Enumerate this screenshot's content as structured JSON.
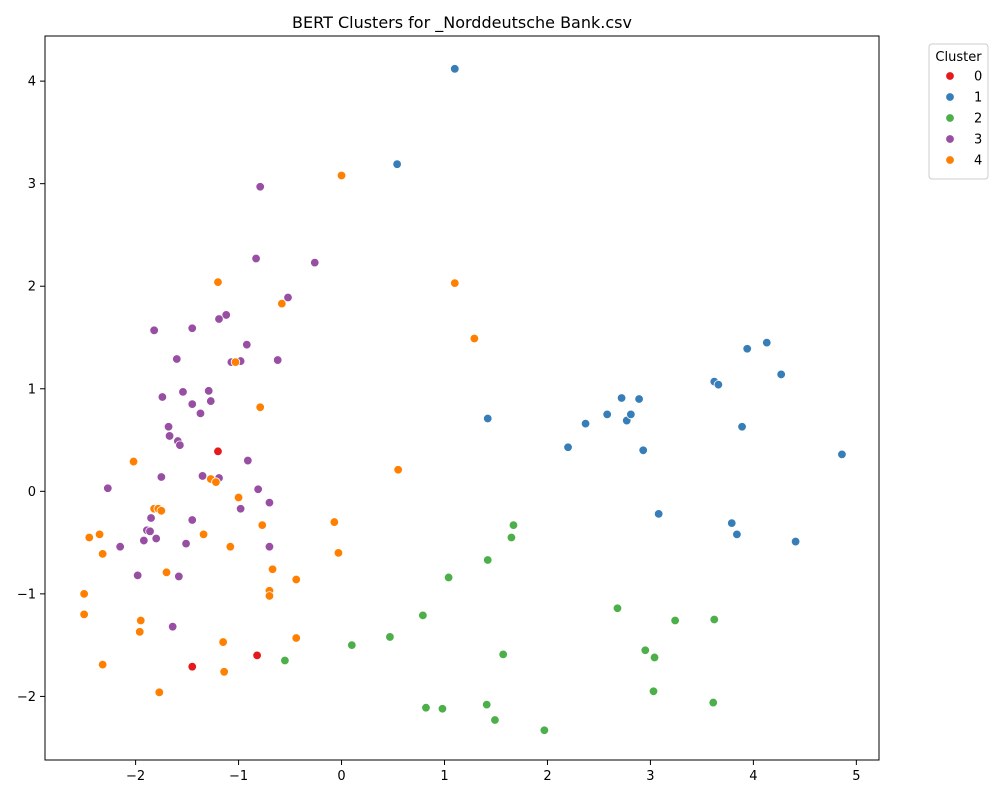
{
  "chart_data": {
    "type": "scatter",
    "title": "BERT Clusters for _Norddeutsche Bank.csv",
    "xlabel": "",
    "ylabel": "",
    "xlim": [
      -2.88,
      5.22
    ],
    "ylim": [
      -2.62,
      4.44
    ],
    "xticks": [
      -2,
      -1,
      0,
      1,
      2,
      3,
      4,
      5
    ],
    "yticks": [
      -2,
      -1,
      0,
      1,
      2,
      3,
      4
    ],
    "xtick_labels": [
      "−2",
      "−1",
      "0",
      "1",
      "2",
      "3",
      "4",
      "5"
    ],
    "ytick_labels": [
      "−2",
      "−1",
      "0",
      "1",
      "2",
      "3",
      "4"
    ],
    "grid": false,
    "legend": {
      "title": "Cluster",
      "placement": "outside top-right"
    },
    "series": [
      {
        "name": "0",
        "color": "#e41a1c",
        "points": [
          [
            -1.2,
            0.39
          ],
          [
            -1.45,
            -1.71
          ],
          [
            -0.82,
            -1.6
          ]
        ]
      },
      {
        "name": "1",
        "color": "#377eb8",
        "points": [
          [
            1.1,
            4.12
          ],
          [
            0.54,
            3.19
          ],
          [
            1.42,
            0.71
          ],
          [
            2.2,
            0.43
          ],
          [
            2.37,
            0.66
          ],
          [
            2.58,
            0.75
          ],
          [
            2.72,
            0.91
          ],
          [
            2.77,
            0.69
          ],
          [
            2.81,
            0.75
          ],
          [
            2.89,
            0.9
          ],
          [
            2.93,
            0.4
          ],
          [
            3.08,
            -0.22
          ],
          [
            3.62,
            1.07
          ],
          [
            3.66,
            1.04
          ],
          [
            3.79,
            -0.31
          ],
          [
            3.84,
            -0.42
          ],
          [
            3.89,
            0.63
          ],
          [
            3.94,
            1.39
          ],
          [
            4.13,
            1.45
          ],
          [
            4.27,
            1.14
          ],
          [
            4.41,
            -0.49
          ],
          [
            4.86,
            0.36
          ]
        ]
      },
      {
        "name": "2",
        "color": "#4daf4a",
        "points": [
          [
            1.67,
            -0.33
          ],
          [
            1.65,
            -0.45
          ],
          [
            1.42,
            -0.67
          ],
          [
            1.04,
            -0.84
          ],
          [
            0.79,
            -1.21
          ],
          [
            0.47,
            -1.42
          ],
          [
            0.1,
            -1.5
          ],
          [
            -0.55,
            -1.65
          ],
          [
            1.57,
            -1.59
          ],
          [
            0.82,
            -2.11
          ],
          [
            0.98,
            -2.12
          ],
          [
            1.41,
            -2.08
          ],
          [
            1.49,
            -2.23
          ],
          [
            1.97,
            -2.33
          ],
          [
            2.68,
            -1.14
          ],
          [
            2.95,
            -1.55
          ],
          [
            3.04,
            -1.62
          ],
          [
            3.03,
            -1.95
          ],
          [
            3.24,
            -1.26
          ],
          [
            3.62,
            -1.25
          ],
          [
            3.61,
            -2.06
          ]
        ]
      },
      {
        "name": "3",
        "color": "#984ea3",
        "points": [
          [
            -0.79,
            2.97
          ],
          [
            -0.83,
            2.27
          ],
          [
            -0.26,
            2.23
          ],
          [
            -0.52,
            1.89
          ],
          [
            -1.12,
            1.72
          ],
          [
            -1.19,
            1.68
          ],
          [
            -1.45,
            1.59
          ],
          [
            -1.82,
            1.57
          ],
          [
            -0.92,
            1.43
          ],
          [
            -1.6,
            1.29
          ],
          [
            -1.07,
            1.26
          ],
          [
            -0.98,
            1.27
          ],
          [
            -0.62,
            1.28
          ],
          [
            -1.54,
            0.97
          ],
          [
            -1.29,
            0.98
          ],
          [
            -1.27,
            0.88
          ],
          [
            -1.74,
            0.92
          ],
          [
            -1.45,
            0.85
          ],
          [
            -1.37,
            0.76
          ],
          [
            -1.68,
            0.63
          ],
          [
            -1.67,
            0.54
          ],
          [
            -1.59,
            0.49
          ],
          [
            -1.57,
            0.45
          ],
          [
            -0.91,
            0.3
          ],
          [
            -1.75,
            0.14
          ],
          [
            -1.35,
            0.15
          ],
          [
            -1.19,
            0.13
          ],
          [
            -2.27,
            0.03
          ],
          [
            -0.81,
            0.02
          ],
          [
            -0.7,
            -0.11
          ],
          [
            -0.98,
            -0.17
          ],
          [
            -1.85,
            -0.26
          ],
          [
            -1.45,
            -0.28
          ],
          [
            -1.89,
            -0.38
          ],
          [
            -1.86,
            -0.39
          ],
          [
            -1.8,
            -0.46
          ],
          [
            -1.92,
            -0.48
          ],
          [
            -1.51,
            -0.51
          ],
          [
            -2.15,
            -0.54
          ],
          [
            -0.7,
            -0.54
          ],
          [
            -1.98,
            -0.82
          ],
          [
            -1.58,
            -0.83
          ],
          [
            -1.64,
            -1.32
          ]
        ]
      },
      {
        "name": "4",
        "color": "#ff7f00",
        "points": [
          [
            0.0,
            3.08
          ],
          [
            1.1,
            2.03
          ],
          [
            -1.2,
            2.04
          ],
          [
            -0.58,
            1.83
          ],
          [
            1.29,
            1.49
          ],
          [
            -1.03,
            1.26
          ],
          [
            -0.79,
            0.82
          ],
          [
            -2.02,
            0.29
          ],
          [
            0.55,
            0.21
          ],
          [
            -1.27,
            0.12
          ],
          [
            -1.22,
            0.09
          ],
          [
            -1.0,
            -0.06
          ],
          [
            -1.82,
            -0.17
          ],
          [
            -1.78,
            -0.17
          ],
          [
            -1.75,
            -0.19
          ],
          [
            -0.07,
            -0.3
          ],
          [
            -0.77,
            -0.33
          ],
          [
            -2.35,
            -0.42
          ],
          [
            -2.45,
            -0.45
          ],
          [
            -1.34,
            -0.42
          ],
          [
            -1.08,
            -0.54
          ],
          [
            -0.03,
            -0.6
          ],
          [
            -2.32,
            -0.61
          ],
          [
            -0.67,
            -0.76
          ],
          [
            -1.7,
            -0.79
          ],
          [
            -0.44,
            -0.86
          ],
          [
            -0.7,
            -0.97
          ],
          [
            -0.7,
            -1.02
          ],
          [
            -2.5,
            -1.0
          ],
          [
            -2.5,
            -1.2
          ],
          [
            -1.95,
            -1.26
          ],
          [
            -1.96,
            -1.37
          ],
          [
            -0.44,
            -1.43
          ],
          [
            -1.15,
            -1.47
          ],
          [
            -2.32,
            -1.69
          ],
          [
            -1.14,
            -1.76
          ],
          [
            -1.77,
            -1.96
          ]
        ]
      }
    ]
  }
}
